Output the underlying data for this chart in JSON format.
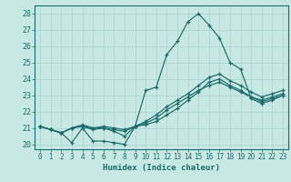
{
  "xlabel": "Humidex (Indice chaleur)",
  "xlim": [
    -0.5,
    23.5
  ],
  "ylim": [
    19.7,
    28.5
  ],
  "yticks": [
    20,
    21,
    22,
    23,
    24,
    25,
    26,
    27,
    28
  ],
  "xticks": [
    0,
    1,
    2,
    3,
    4,
    5,
    6,
    7,
    8,
    9,
    10,
    11,
    12,
    13,
    14,
    15,
    16,
    17,
    18,
    19,
    20,
    21,
    22,
    23
  ],
  "bg_color": "#c8e8e4",
  "line_color": "#1a6b6b",
  "grid_color": "#b0d8d4",
  "lines": [
    {
      "x": [
        0,
        1,
        2,
        3,
        4,
        5,
        6,
        7,
        8,
        9,
        10,
        11,
        12,
        13,
        14,
        15,
        16,
        17,
        18,
        19,
        20,
        21,
        22,
        23
      ],
      "y": [
        21.1,
        20.9,
        20.7,
        20.1,
        21.0,
        20.2,
        20.2,
        20.1,
        20.0,
        21.1,
        23.3,
        23.5,
        25.5,
        26.3,
        27.5,
        28.0,
        27.3,
        26.5,
        25.0,
        24.6,
        22.8,
        22.5,
        22.7,
        23.0
      ]
    },
    {
      "x": [
        0,
        1,
        2,
        3,
        4,
        5,
        6,
        7,
        8,
        9,
        10,
        11,
        12,
        13,
        14,
        15,
        16,
        17,
        18,
        19,
        20,
        21,
        22,
        23
      ],
      "y": [
        21.1,
        20.9,
        20.7,
        21.0,
        21.1,
        20.9,
        21.0,
        20.8,
        20.5,
        21.1,
        21.2,
        21.4,
        21.8,
        22.2,
        22.7,
        23.2,
        23.8,
        24.0,
        23.6,
        23.3,
        22.9,
        22.6,
        22.8,
        23.0
      ]
    },
    {
      "x": [
        0,
        1,
        2,
        3,
        4,
        5,
        6,
        7,
        8,
        9,
        10,
        11,
        12,
        13,
        14,
        15,
        16,
        17,
        18,
        19,
        20,
        21,
        22,
        23
      ],
      "y": [
        21.1,
        20.9,
        20.7,
        21.0,
        21.1,
        21.0,
        21.0,
        20.9,
        20.8,
        21.1,
        21.3,
        21.6,
        22.1,
        22.5,
        22.9,
        23.3,
        23.6,
        23.8,
        23.5,
        23.2,
        22.9,
        22.7,
        22.9,
        23.1
      ]
    },
    {
      "x": [
        0,
        1,
        2,
        3,
        4,
        5,
        6,
        7,
        8,
        9,
        10,
        11,
        12,
        13,
        14,
        15,
        16,
        17,
        18,
        19,
        20,
        21,
        22,
        23
      ],
      "y": [
        21.1,
        20.9,
        20.7,
        21.0,
        21.2,
        21.0,
        21.1,
        21.0,
        20.9,
        21.1,
        21.4,
        21.8,
        22.3,
        22.7,
        23.1,
        23.6,
        24.1,
        24.3,
        23.9,
        23.6,
        23.2,
        22.9,
        23.1,
        23.3
      ]
    }
  ]
}
